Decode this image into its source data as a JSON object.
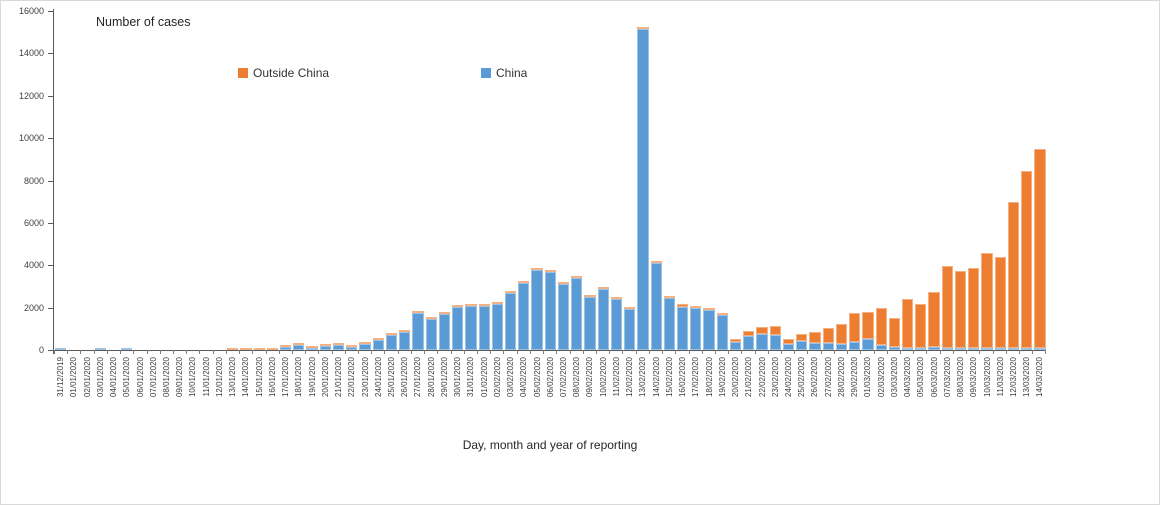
{
  "chart_data": {
    "type": "bar",
    "stacked": true,
    "title": "Number of cases",
    "xlabel": "Day, month and year of reporting",
    "ylabel": "",
    "ylim": [
      0,
      16000
    ],
    "ytick_step": 2000,
    "grid": false,
    "legend_position": "top-inside",
    "legend": [
      {
        "label": "Outside China",
        "color": "#ED7D31"
      },
      {
        "label": "China",
        "color": "#5B9BD5"
      }
    ],
    "categories": [
      "31/12/2019",
      "01/01/2020",
      "02/01/2020",
      "03/01/2020",
      "04/01/2020",
      "05/01/2020",
      "06/01/2020",
      "07/01/2020",
      "08/01/2020",
      "09/01/2020",
      "10/01/2020",
      "11/01/2020",
      "12/01/2020",
      "13/01/2020",
      "14/01/2020",
      "15/01/2020",
      "16/01/2020",
      "17/01/2020",
      "18/01/2020",
      "19/01/2020",
      "20/01/2020",
      "21/01/2020",
      "22/01/2020",
      "23/01/2020",
      "24/01/2020",
      "25/01/2020",
      "26/01/2020",
      "27/01/2020",
      "28/01/2020",
      "29/01/2020",
      "30/01/2020",
      "31/01/2020",
      "01/02/2020",
      "02/02/2020",
      "03/02/2020",
      "04/02/2020",
      "05/02/2020",
      "06/02/2020",
      "07/02/2020",
      "08/02/2020",
      "09/02/2020",
      "10/02/2020",
      "11/02/2020",
      "12/02/2020",
      "13/02/2020",
      "14/02/2020",
      "15/02/2020",
      "16/02/2020",
      "17/02/2020",
      "18/02/2020",
      "19/02/2020",
      "20/02/2020",
      "21/02/2020",
      "22/02/2020",
      "23/02/2020",
      "24/02/2020",
      "25/02/2020",
      "26/02/2020",
      "27/02/2020",
      "28/02/2020",
      "29/02/2020",
      "01/03/2020",
      "02/03/2020",
      "03/03/2020",
      "04/03/2020",
      "05/03/2020",
      "06/03/2020",
      "07/03/2020",
      "08/03/2020",
      "09/03/2020",
      "10/03/2020",
      "11/03/2020",
      "12/03/2020",
      "13/03/2020",
      "14/03/2020"
    ],
    "series": [
      {
        "name": "China",
        "color": "#5B9BD5",
        "border_color": "#9CC2E5",
        "values": [
          27,
          0,
          0,
          17,
          0,
          15,
          0,
          0,
          0,
          0,
          0,
          0,
          0,
          0,
          0,
          0,
          0,
          145,
          215,
          75,
          185,
          225,
          130,
          305,
          480,
          695,
          850,
          1740,
          1455,
          1690,
          2030,
          2065,
          2100,
          2190,
          2690,
          3140,
          3790,
          3690,
          3110,
          3380,
          2480,
          2870,
          2400,
          1915,
          15140,
          4110,
          2450,
          2025,
          1985,
          1885,
          1635,
          390,
          660,
          740,
          710,
          270,
          425,
          345,
          345,
          300,
          390,
          535,
          220,
          140,
          110,
          95,
          145,
          100,
          45,
          45,
          20,
          30,
          25,
          10,
          27
        ]
      },
      {
        "name": "Outside China",
        "color": "#ED7D31",
        "border_color": "#F4B183",
        "values": [
          0,
          0,
          0,
          0,
          0,
          0,
          0,
          0,
          0,
          0,
          0,
          0,
          0,
          1,
          1,
          2,
          1,
          5,
          5,
          5,
          5,
          10,
          10,
          10,
          10,
          15,
          15,
          20,
          25,
          25,
          30,
          35,
          50,
          60,
          60,
          60,
          70,
          70,
          70,
          70,
          70,
          70,
          70,
          85,
          90,
          90,
          100,
          135,
          95,
          115,
          125,
          115,
          240,
          345,
          425,
          235,
          315,
          515,
          675,
          930,
          1360,
          1275,
          1780,
          1385,
          2280,
          2090,
          2615,
          3850,
          3620,
          3790,
          4475,
          4310,
          6895,
          8355,
          9395
        ]
      }
    ]
  }
}
